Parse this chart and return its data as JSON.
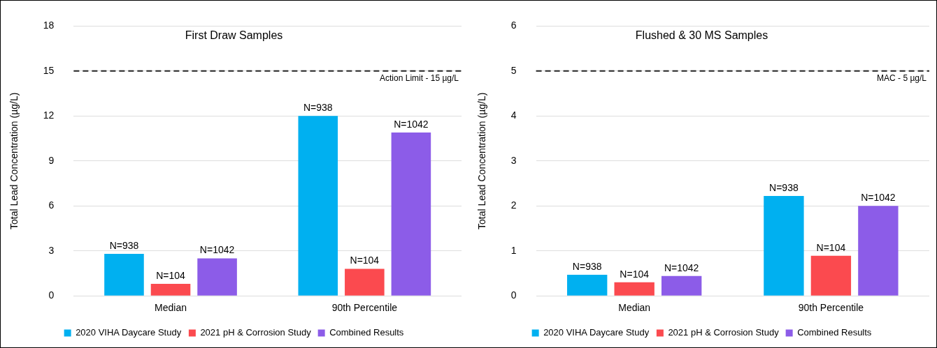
{
  "chart_data": [
    {
      "type": "bar",
      "title": "First Draw Samples",
      "ylabel": "Total Lead Concentration (µg/L)",
      "categories": [
        "Median",
        "90th Percentile"
      ],
      "series": [
        {
          "name": "2020 VIHA Daycare Study",
          "color": "#00b0f0",
          "values": [
            2.8,
            12.0
          ]
        },
        {
          "name": "2021 pH & Corrosion Study",
          "color": "#fb4a4f",
          "values": [
            0.8,
            1.8
          ]
        },
        {
          "name": "Combined Results",
          "color": "#8c5ce8",
          "values": [
            2.5,
            10.9
          ]
        }
      ],
      "ylim": [
        0,
        18
      ],
      "yticks": [
        0,
        3,
        6,
        9,
        12,
        15,
        18
      ],
      "grid": "y",
      "legend": "bottom",
      "annotations": [
        "N=938",
        "N=104",
        "N=1042",
        "N=938",
        "N=104",
        "N=1042"
      ],
      "ref_lines": [
        {
          "axis": "y",
          "value": 15,
          "label": "Action Limit - 15 µg/L",
          "color": "#222222",
          "line_style": "dashed"
        }
      ]
    },
    {
      "type": "bar",
      "title": "Flushed & 30 MS Samples",
      "ylabel": "Total Lead Concentration (µg/L)",
      "categories": [
        "Median",
        "90th Percentile"
      ],
      "series": [
        {
          "name": "2020 VIHA Daycare Study",
          "color": "#00b0f0",
          "values": [
            0.47,
            2.22
          ]
        },
        {
          "name": "2021 pH & Corrosion Study",
          "color": "#fb4a4f",
          "values": [
            0.3,
            0.89
          ]
        },
        {
          "name": "Combined Results",
          "color": "#8c5ce8",
          "values": [
            0.44,
            2.0
          ]
        }
      ],
      "ylim": [
        0,
        6
      ],
      "yticks": [
        0,
        1,
        2,
        3,
        4,
        5,
        6
      ],
      "grid": "y",
      "legend": "bottom",
      "annotations": [
        "N=938",
        "N=104",
        "N=1042",
        "N=938",
        "N=104",
        "N=1042"
      ],
      "ref_lines": [
        {
          "axis": "y",
          "value": 5,
          "label": "MAC - 5 µg/L",
          "color": "#222222",
          "line_style": "dashed"
        }
      ]
    }
  ]
}
